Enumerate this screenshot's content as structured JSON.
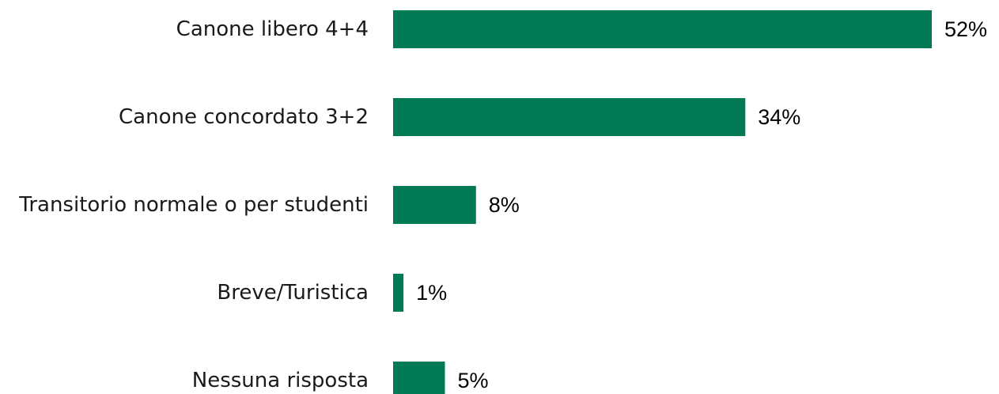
{
  "chart_data": {
    "type": "bar",
    "orientation": "horizontal",
    "categories": [
      "Canone libero 4+4",
      "Canone concordato 3+2",
      "Transitorio normale o per studenti",
      "Breve/Turistica",
      "Nessuna risposta"
    ],
    "values": [
      52,
      34,
      8,
      1,
      5
    ],
    "value_labels": [
      "52%",
      "34%",
      "8%",
      "1%",
      "5%"
    ],
    "unit": "%",
    "title": "",
    "xlabel": "",
    "ylabel": "",
    "xlim": [
      0,
      52
    ],
    "grid": false,
    "legend": "none",
    "bar_color": "#007a55"
  }
}
